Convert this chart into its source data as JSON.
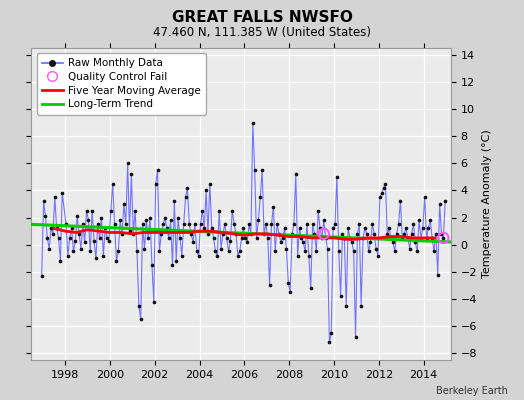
{
  "title": "GREAT FALLS NWSFO",
  "subtitle": "47.460 N, 111.385 W (United States)",
  "ylabel": "Temperature Anomaly (°C)",
  "credit": "Berkeley Earth",
  "ylim": [
    -8.5,
    14.5
  ],
  "yticks": [
    -8,
    -6,
    -4,
    -2,
    0,
    2,
    4,
    6,
    8,
    10,
    12,
    14
  ],
  "xlim": [
    1996.5,
    2015.2
  ],
  "xticks": [
    1998,
    2000,
    2002,
    2004,
    2006,
    2008,
    2010,
    2012,
    2014
  ],
  "fig_bg_color": "#d4d4d4",
  "plot_bg_color": "#ebebeb",
  "grid_color": "#ffffff",
  "raw_monthly": {
    "times": [
      1996.958,
      1997.042,
      1997.125,
      1997.208,
      1997.292,
      1997.375,
      1997.458,
      1997.542,
      1997.625,
      1997.708,
      1997.792,
      1997.875,
      1998.042,
      1998.125,
      1998.208,
      1998.292,
      1998.375,
      1998.458,
      1998.542,
      1998.625,
      1998.708,
      1998.792,
      1998.875,
      1998.958,
      1999.042,
      1999.125,
      1999.208,
      1999.292,
      1999.375,
      1999.458,
      1999.542,
      1999.625,
      1999.708,
      1999.792,
      1999.875,
      1999.958,
      2000.042,
      2000.125,
      2000.208,
      2000.292,
      2000.375,
      2000.458,
      2000.542,
      2000.625,
      2000.708,
      2000.792,
      2000.875,
      2000.958,
      2001.042,
      2001.125,
      2001.208,
      2001.292,
      2001.375,
      2001.458,
      2001.542,
      2001.625,
      2001.708,
      2001.792,
      2001.875,
      2001.958,
      2002.042,
      2002.125,
      2002.208,
      2002.292,
      2002.375,
      2002.458,
      2002.542,
      2002.625,
      2002.708,
      2002.792,
      2002.875,
      2002.958,
      2003.042,
      2003.125,
      2003.208,
      2003.292,
      2003.375,
      2003.458,
      2003.542,
      2003.625,
      2003.708,
      2003.792,
      2003.875,
      2003.958,
      2004.042,
      2004.125,
      2004.208,
      2004.292,
      2004.375,
      2004.458,
      2004.542,
      2004.625,
      2004.708,
      2004.792,
      2004.875,
      2004.958,
      2005.042,
      2005.125,
      2005.208,
      2005.292,
      2005.375,
      2005.458,
      2005.542,
      2005.625,
      2005.708,
      2005.792,
      2005.875,
      2005.958,
      2006.042,
      2006.125,
      2006.208,
      2006.292,
      2006.375,
      2006.458,
      2006.542,
      2006.625,
      2006.708,
      2006.792,
      2006.875,
      2006.958,
      2007.042,
      2007.125,
      2007.208,
      2007.292,
      2007.375,
      2007.458,
      2007.542,
      2007.625,
      2007.708,
      2007.792,
      2007.875,
      2007.958,
      2008.042,
      2008.125,
      2008.208,
      2008.292,
      2008.375,
      2008.458,
      2008.542,
      2008.625,
      2008.708,
      2008.792,
      2008.875,
      2008.958,
      2009.042,
      2009.125,
      2009.208,
      2009.292,
      2009.375,
      2009.458,
      2009.542,
      2009.625,
      2009.708,
      2009.792,
      2009.875,
      2009.958,
      2010.042,
      2010.125,
      2010.208,
      2010.292,
      2010.375,
      2010.458,
      2010.542,
      2010.625,
      2010.708,
      2010.792,
      2010.875,
      2010.958,
      2011.042,
      2011.125,
      2011.208,
      2011.292,
      2011.375,
      2011.458,
      2011.542,
      2011.625,
      2011.708,
      2011.792,
      2011.875,
      2011.958,
      2012.042,
      2012.125,
      2012.208,
      2012.292,
      2012.375,
      2012.458,
      2012.542,
      2012.625,
      2012.708,
      2012.792,
      2012.875,
      2012.958,
      2013.042,
      2013.125,
      2013.208,
      2013.292,
      2013.375,
      2013.458,
      2013.542,
      2013.625,
      2013.708,
      2013.792,
      2013.875,
      2013.958,
      2014.042,
      2014.125,
      2014.208,
      2014.292,
      2014.375,
      2014.458,
      2014.542,
      2014.625,
      2014.708,
      2014.792,
      2014.875,
      2014.958
    ],
    "values": [
      -2.3,
      3.2,
      2.1,
      0.5,
      -0.3,
      1.2,
      0.8,
      3.5,
      1.2,
      0.5,
      -1.2,
      3.8,
      1.5,
      -0.8,
      0.5,
      1.2,
      -0.5,
      0.3,
      2.1,
      0.8,
      -0.3,
      1.5,
      0.2,
      2.5,
      1.8,
      -0.5,
      2.5,
      0.3,
      -1.0,
      1.5,
      0.5,
      2.0,
      -0.8,
      1.2,
      0.5,
      0.3,
      2.5,
      4.5,
      1.5,
      -1.2,
      -0.5,
      1.8,
      0.8,
      3.0,
      1.5,
      6.0,
      1.0,
      5.2,
      0.8,
      2.5,
      -0.5,
      -4.5,
      -5.5,
      1.5,
      -0.3,
      1.8,
      0.5,
      2.0,
      -1.5,
      -4.2,
      4.5,
      5.5,
      -0.5,
      0.8,
      1.5,
      2.0,
      1.2,
      0.5,
      1.8,
      -1.5,
      3.2,
      -1.2,
      2.0,
      0.5,
      -0.8,
      1.5,
      3.5,
      4.2,
      1.5,
      0.8,
      0.2,
      1.5,
      -0.5,
      -0.8,
      1.5,
      2.5,
      1.2,
      4.0,
      0.8,
      4.5,
      1.2,
      0.5,
      -0.5,
      -0.8,
      2.5,
      -0.3,
      0.8,
      1.5,
      0.5,
      -0.5,
      0.3,
      2.5,
      1.5,
      0.8,
      -0.8,
      -0.5,
      0.5,
      1.2,
      0.5,
      0.2,
      1.5,
      0.8,
      9.0,
      5.5,
      0.5,
      1.8,
      3.5,
      5.5,
      0.8,
      1.5,
      0.5,
      -3.0,
      1.5,
      2.8,
      -0.5,
      1.5,
      0.8,
      0.2,
      0.5,
      1.2,
      -0.3,
      -2.8,
      -3.5,
      0.8,
      1.5,
      5.2,
      -0.8,
      1.2,
      0.5,
      0.2,
      -0.5,
      1.5,
      -0.8,
      -3.2,
      1.5,
      0.8,
      -0.5,
      2.5,
      1.2,
      0.5,
      1.8,
      0.5,
      -0.3,
      -7.2,
      -6.5,
      1.2,
      1.5,
      5.0,
      -0.5,
      -3.8,
      0.8,
      0.5,
      -4.5,
      1.2,
      0.5,
      0.2,
      -0.5,
      -6.8,
      0.8,
      1.5,
      -4.5,
      0.5,
      1.2,
      0.8,
      -0.5,
      0.2,
      1.5,
      0.8,
      -0.3,
      -0.8,
      3.5,
      3.8,
      4.2,
      4.5,
      0.8,
      1.2,
      0.5,
      0.2,
      -0.5,
      0.8,
      1.5,
      3.2,
      0.5,
      0.8,
      1.2,
      0.5,
      -0.3,
      0.8,
      1.5,
      0.2,
      -0.5,
      1.8,
      0.5,
      1.2,
      3.5,
      0.5,
      1.2,
      1.8,
      0.5,
      -0.5,
      0.8,
      -2.2,
      3.0,
      0.8,
      0.5,
      3.2
    ]
  },
  "qc_fail_times": [
    2009.542,
    2014.875
  ],
  "qc_fail_values": [
    0.8,
    0.5
  ],
  "moving_avg_times": [
    1997.5,
    1998.0,
    1998.5,
    1999.0,
    1999.5,
    2000.0,
    2000.5,
    2001.0,
    2001.5,
    2002.0,
    2002.5,
    2003.0,
    2003.5,
    2004.0,
    2004.5,
    2005.0,
    2005.5,
    2006.0,
    2006.5,
    2007.0,
    2007.5,
    2008.0,
    2008.5,
    2009.0,
    2009.5,
    2010.0,
    2010.5,
    2011.0,
    2011.5,
    2012.0,
    2012.5,
    2013.0,
    2013.5,
    2014.0,
    2014.5
  ],
  "moving_avg_values": [
    1.2,
    1.0,
    0.9,
    1.1,
    1.0,
    0.9,
    0.9,
    0.8,
    0.9,
    0.9,
    0.9,
    0.9,
    0.9,
    1.0,
    1.0,
    0.9,
    0.8,
    0.7,
    0.8,
    0.8,
    0.7,
    0.6,
    0.6,
    0.5,
    0.5,
    0.5,
    0.4,
    0.4,
    0.5,
    0.5,
    0.6,
    0.6,
    0.5,
    0.5,
    0.5
  ],
  "trend_times": [
    1996.5,
    2015.2
  ],
  "trend_values": [
    1.5,
    0.2
  ],
  "line_color": "#6666ff",
  "marker_color": "#111111",
  "moving_avg_color": "#ff0000",
  "trend_color": "#00cc00",
  "qc_color": "#ff55ff",
  "title_fontsize": 11,
  "subtitle_fontsize": 8.5,
  "tick_labelsize": 8,
  "legend_fontsize": 7.5
}
